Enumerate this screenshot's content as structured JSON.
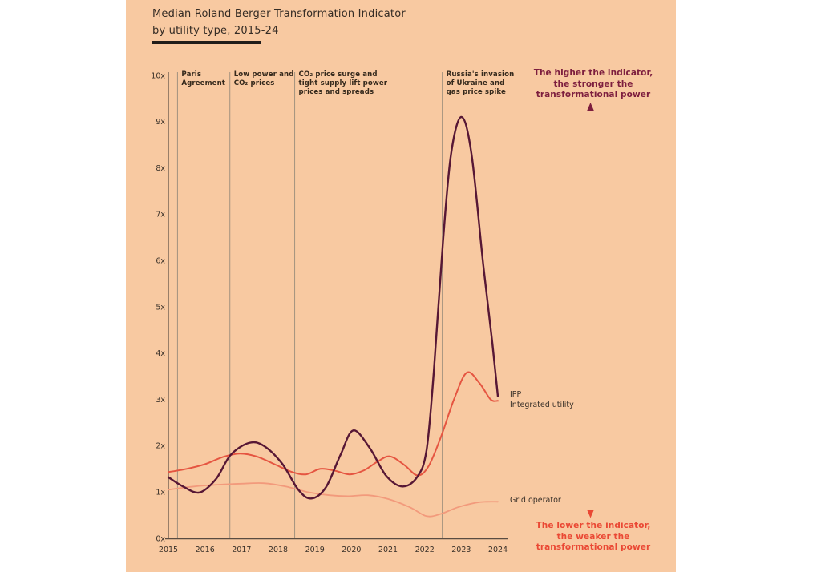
{
  "title": {
    "line1": "Median Roland Berger Transformation Indicator",
    "line2": "by utility type, 2015-24"
  },
  "colors": {
    "background": "#f8c9a1",
    "ipp_line": "#571735",
    "integrated_line": "#e55541",
    "grid_line": "#f29a7c",
    "axis": "#5a4c42",
    "event_line": "#a2927f",
    "higher_note_text": "#7d1e3e",
    "lower_note_text": "#ea4834",
    "label_text": "#35291c"
  },
  "chart_data": {
    "type": "line",
    "title": "Median Roland Berger Transformation Indicator by utility type, 2015-24",
    "xlabel": "",
    "ylabel": "",
    "xlim": [
      2015,
      2024
    ],
    "ylim": [
      0,
      10
    ],
    "grid": "off",
    "x_axis": {
      "tick_labels": [
        "2015",
        "2016",
        "2017",
        "2018",
        "2019",
        "2020",
        "2021",
        "2022",
        "2023",
        "2024"
      ]
    },
    "y_axis": {
      "tick_labels": [
        "0x",
        "1x",
        "2x",
        "3x",
        "4x",
        "5x",
        "6x",
        "7x",
        "8x",
        "9x",
        "10x"
      ]
    },
    "series": [
      {
        "name": "IPP",
        "color": "#571735",
        "width": 2.4,
        "points": [
          [
            2015.0,
            1.32
          ],
          [
            2015.4,
            1.12
          ],
          [
            2015.85,
            0.99
          ],
          [
            2016.3,
            1.28
          ],
          [
            2016.7,
            1.8
          ],
          [
            2017.2,
            2.06
          ],
          [
            2017.6,
            2.0
          ],
          [
            2018.1,
            1.62
          ],
          [
            2018.55,
            1.05
          ],
          [
            2018.9,
            0.86
          ],
          [
            2019.3,
            1.1
          ],
          [
            2019.7,
            1.8
          ],
          [
            2020.05,
            2.33
          ],
          [
            2020.5,
            1.95
          ],
          [
            2020.95,
            1.35
          ],
          [
            2021.4,
            1.12
          ],
          [
            2021.8,
            1.33
          ],
          [
            2022.05,
            1.9
          ],
          [
            2022.25,
            3.6
          ],
          [
            2022.5,
            6.4
          ],
          [
            2022.72,
            8.3
          ],
          [
            2023.0,
            9.1
          ],
          [
            2023.28,
            8.3
          ],
          [
            2023.6,
            5.9
          ],
          [
            2023.85,
            4.2
          ],
          [
            2024.0,
            3.07
          ]
        ]
      },
      {
        "name": "Integrated utility",
        "color": "#e55541",
        "width": 2.0,
        "points": [
          [
            2015.0,
            1.43
          ],
          [
            2015.5,
            1.5
          ],
          [
            2016.0,
            1.6
          ],
          [
            2016.5,
            1.76
          ],
          [
            2016.95,
            1.83
          ],
          [
            2017.4,
            1.77
          ],
          [
            2017.9,
            1.6
          ],
          [
            2018.35,
            1.44
          ],
          [
            2018.75,
            1.38
          ],
          [
            2019.15,
            1.5
          ],
          [
            2019.55,
            1.46
          ],
          [
            2019.95,
            1.38
          ],
          [
            2020.35,
            1.47
          ],
          [
            2020.7,
            1.65
          ],
          [
            2021.05,
            1.77
          ],
          [
            2021.45,
            1.58
          ],
          [
            2021.8,
            1.36
          ],
          [
            2022.1,
            1.55
          ],
          [
            2022.45,
            2.2
          ],
          [
            2022.8,
            3.0
          ],
          [
            2023.15,
            3.58
          ],
          [
            2023.5,
            3.35
          ],
          [
            2023.8,
            3.0
          ],
          [
            2024.0,
            2.97
          ]
        ]
      },
      {
        "name": "Grid operator",
        "color": "#f29a7c",
        "width": 1.8,
        "points": [
          [
            2015.0,
            1.05
          ],
          [
            2015.7,
            1.12
          ],
          [
            2016.4,
            1.16
          ],
          [
            2017.0,
            1.18
          ],
          [
            2017.6,
            1.19
          ],
          [
            2018.2,
            1.12
          ],
          [
            2018.8,
            1.0
          ],
          [
            2019.4,
            0.93
          ],
          [
            2019.9,
            0.91
          ],
          [
            2020.45,
            0.93
          ],
          [
            2021.0,
            0.85
          ],
          [
            2021.6,
            0.67
          ],
          [
            2022.05,
            0.48
          ],
          [
            2022.45,
            0.53
          ],
          [
            2022.9,
            0.67
          ],
          [
            2023.4,
            0.77
          ],
          [
            2023.7,
            0.79
          ],
          [
            2024.0,
            0.79
          ]
        ]
      }
    ],
    "event_annotations": [
      {
        "x": 2015.25,
        "lines": [
          "Paris",
          "Agreement"
        ]
      },
      {
        "x": 2016.68,
        "lines": [
          "Low power and",
          "CO₂ prices"
        ]
      },
      {
        "x": 2018.45,
        "lines": [
          "CO₂ price surge and",
          "tight supply lift power",
          "prices and spreads"
        ]
      },
      {
        "x": 2022.48,
        "lines": [
          "Russia's invasion",
          "of Ukraine and",
          "gas price spike"
        ]
      }
    ],
    "series_labels": [
      {
        "text": "IPP"
      },
      {
        "text": "Integrated utility"
      },
      {
        "text": "Grid operator"
      }
    ],
    "side_annotations": {
      "top": {
        "lines": [
          "The higher the indicator,",
          "the stronger the",
          "transformational power"
        ]
      },
      "bottom": {
        "lines": [
          "The lower the indicator,",
          "the weaker the",
          "transformational power"
        ]
      }
    }
  }
}
